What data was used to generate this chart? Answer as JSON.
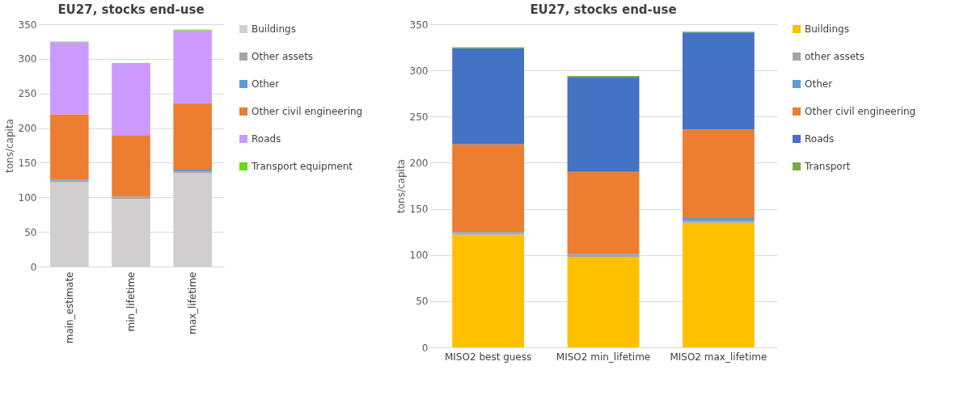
{
  "chart_data": [
    {
      "type": "bar",
      "stacked": true,
      "title": "EU27, stocks end-use",
      "ylabel": "tons/capita",
      "categories": [
        "main_estimate",
        "min_lifetime",
        "max_lifetime"
      ],
      "ylim": [
        0,
        350
      ],
      "yticks": [
        0,
        50,
        100,
        150,
        200,
        250,
        300,
        350
      ],
      "grid": "y",
      "legend": "right",
      "series": [
        {
          "name": "Buildings",
          "color": "#d0cece",
          "values": [
            122,
            98,
            135
          ]
        },
        {
          "name": "Other assets",
          "color": "#a5a5a5",
          "values": [
            2,
            2,
            2
          ]
        },
        {
          "name": "Other",
          "color": "#5b9bd5",
          "values": [
            1,
            1,
            3
          ]
        },
        {
          "name": "Other civil engineering",
          "color": "#ed7d31",
          "values": [
            95,
            89,
            96
          ]
        },
        {
          "name": "Roads",
          "color": "#cc99ff",
          "values": [
            104,
            103,
            105
          ]
        },
        {
          "name": "Transport equipment",
          "color": "#66dd11",
          "values": [
            1,
            1,
            1
          ]
        }
      ]
    },
    {
      "type": "bar",
      "stacked": true,
      "title": "EU27, stocks end-use",
      "ylabel": "tons/capita",
      "categories": [
        "MISO2 best guess",
        "MISO2 min_lifetime",
        "MISO2 max_lifetime"
      ],
      "ylim": [
        0,
        350
      ],
      "yticks": [
        0,
        50,
        100,
        150,
        200,
        250,
        300,
        350
      ],
      "grid": "y",
      "legend": "right",
      "series": [
        {
          "name": "Buildings",
          "color": "#ffc000",
          "values": [
            122,
            98,
            135
          ]
        },
        {
          "name": "other assets",
          "color": "#a5a5a5",
          "values": [
            2,
            2,
            2
          ]
        },
        {
          "name": "Other",
          "color": "#5b9bd5",
          "values": [
            1,
            1,
            3
          ]
        },
        {
          "name": "Other civil engineering",
          "color": "#ed7d31",
          "values": [
            95,
            89,
            96
          ]
        },
        {
          "name": "Roads",
          "color": "#4472c4",
          "values": [
            104,
            103,
            105
          ]
        },
        {
          "name": "Transport",
          "color": "#70ad47",
          "values": [
            1,
            1,
            1
          ]
        }
      ]
    }
  ]
}
